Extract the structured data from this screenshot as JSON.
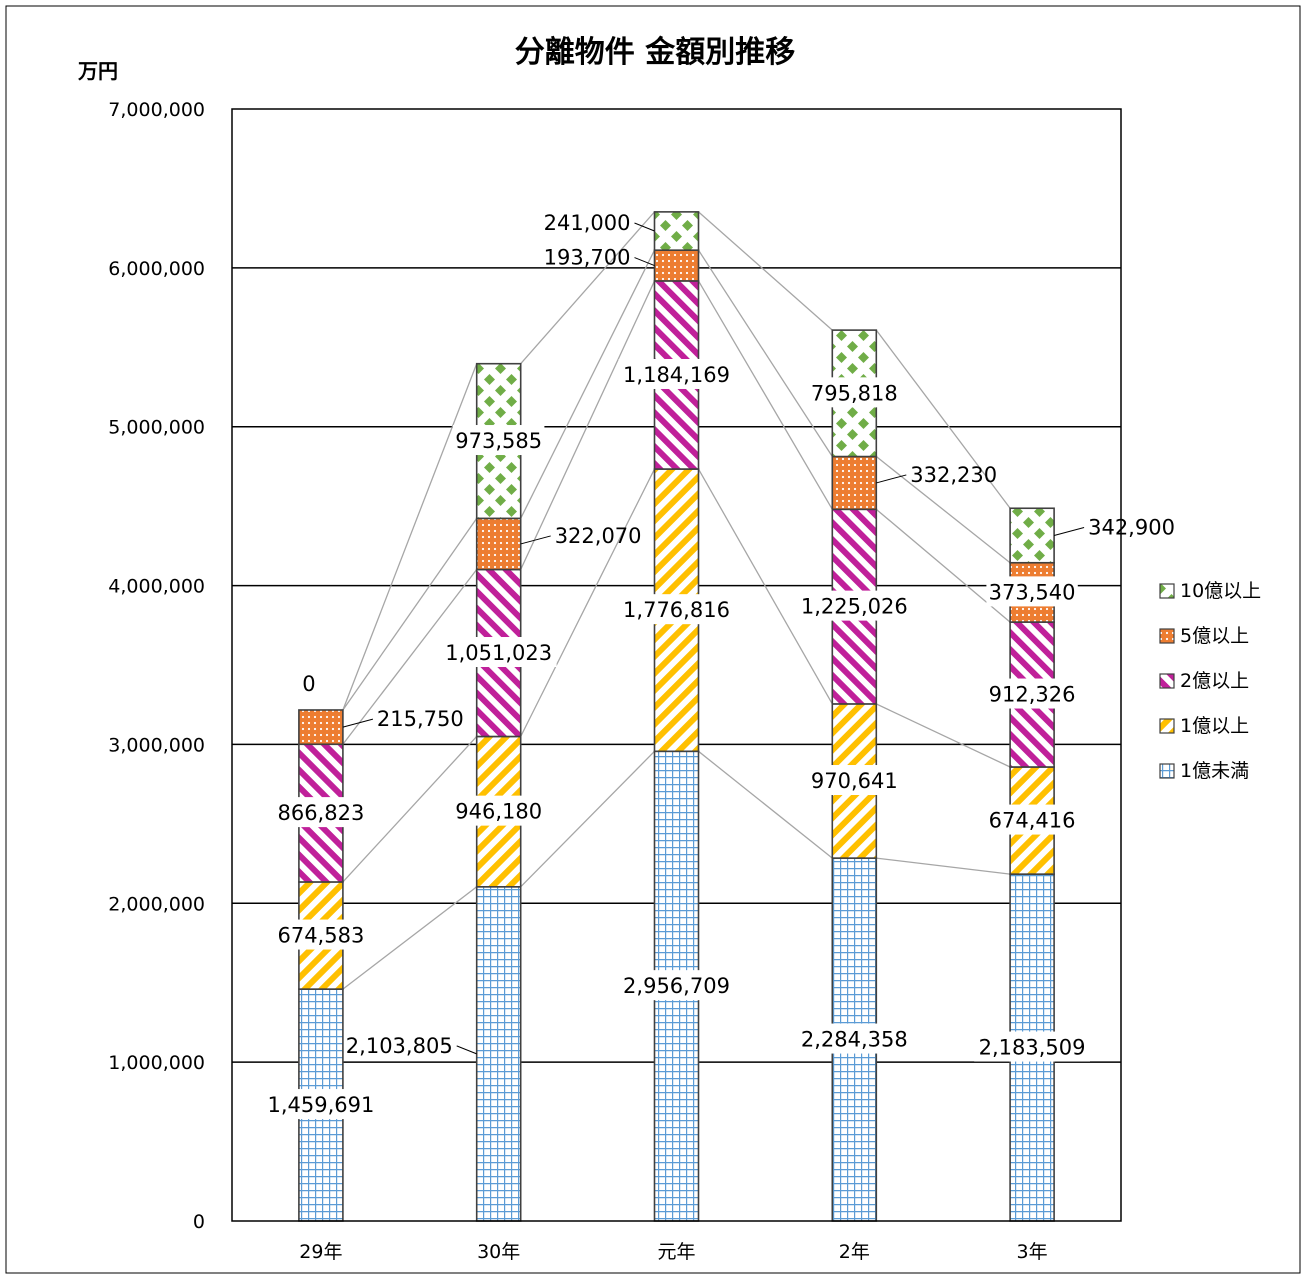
{
  "chart_data": {
    "type": "bar",
    "stacked": true,
    "title": "分離物件 金額別推移",
    "unit_label": "万円",
    "categories": [
      "29年",
      "30年",
      "元年",
      "2年",
      "3年"
    ],
    "ylim": [
      0,
      7000000
    ],
    "yticks": [
      0,
      1000000,
      2000000,
      3000000,
      4000000,
      5000000,
      6000000,
      7000000
    ],
    "ytick_labels": [
      "0",
      "1,000,000",
      "2,000,000",
      "3,000,000",
      "4,000,000",
      "5,000,000",
      "6,000,000",
      "7,000,000"
    ],
    "grid": true,
    "legend_position": "right",
    "series": [
      {
        "name": "1億未満",
        "color": "#5b9bd5",
        "pattern": "grid",
        "values": [
          1459691,
          2103805,
          2956709,
          2284358,
          2183509
        ],
        "labels": [
          "1,459,691",
          "2,103,805",
          "2,956,709",
          "2,284,358",
          "2,183,509"
        ]
      },
      {
        "name": "1億以上",
        "color": "#ffc000",
        "pattern": "diagonal",
        "values": [
          674583,
          946180,
          1776816,
          970641,
          674416
        ],
        "labels": [
          "674,583",
          "946,180",
          "1,776,816",
          "970,641",
          "674,416"
        ]
      },
      {
        "name": "2億以上",
        "color": "#c0209a",
        "pattern": "diagonal",
        "values": [
          866823,
          1051023,
          1184169,
          1225026,
          912326
        ],
        "labels": [
          "866,823",
          "1,051,023",
          "1,184,169",
          "1,225,026",
          "912,326"
        ]
      },
      {
        "name": "5億以上",
        "color": "#ed7d31",
        "pattern": "dots",
        "values": [
          215750,
          322070,
          193700,
          332230,
          373540
        ],
        "labels": [
          "215,750",
          "322,070",
          "193,700",
          "332,230",
          "373,540"
        ]
      },
      {
        "name": "10億以上",
        "color": "#70ad47",
        "pattern": "diamonds",
        "values": [
          0,
          973585,
          241000,
          795818,
          342900
        ],
        "labels": [
          "0",
          "973,585",
          "241,000",
          "795,818",
          "342,900"
        ]
      }
    ]
  }
}
